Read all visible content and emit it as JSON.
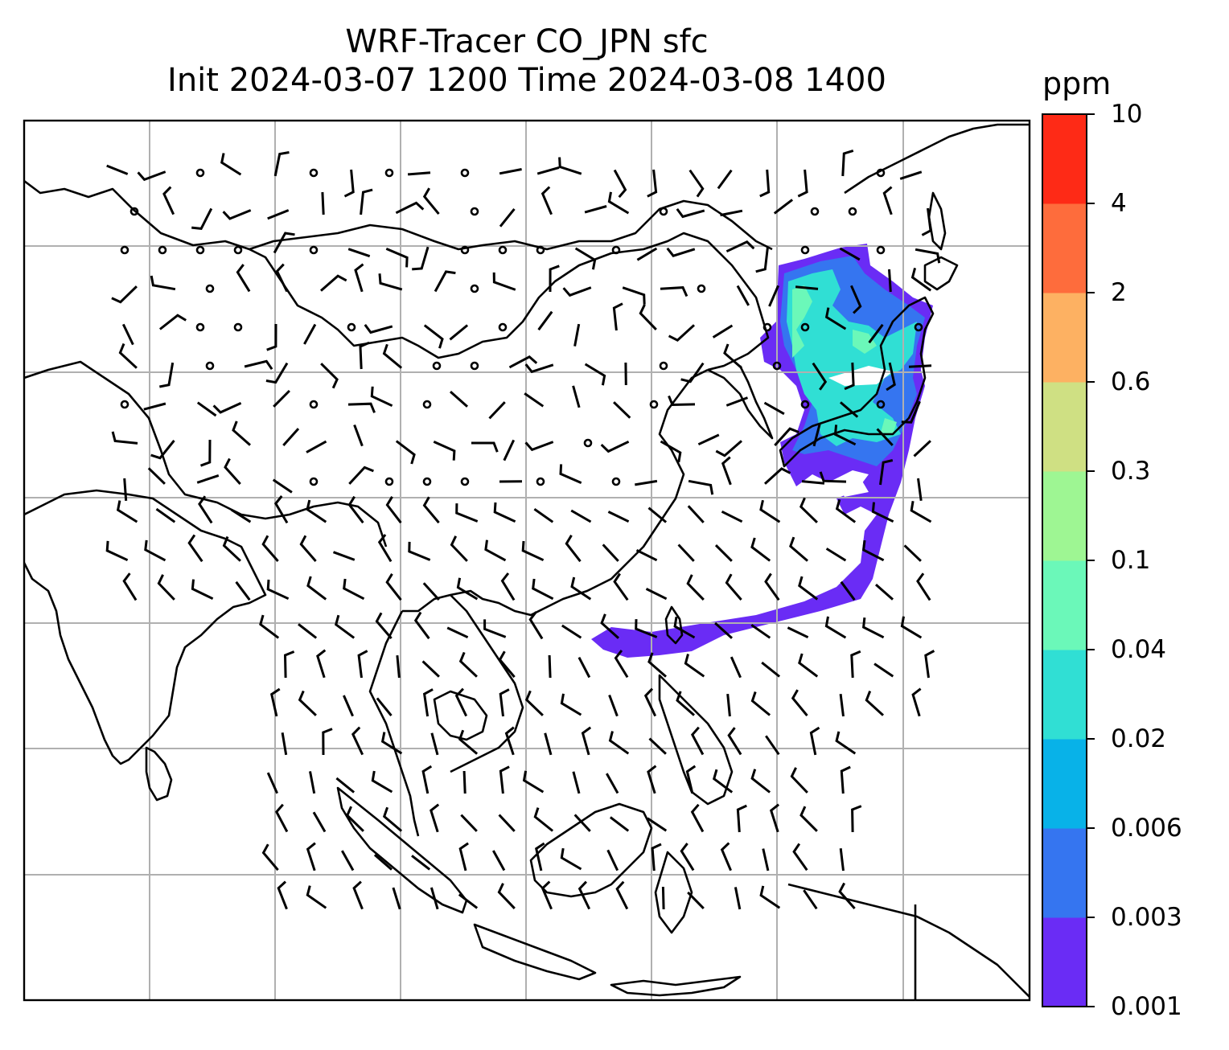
{
  "title": {
    "line1": "WRF-Tracer CO_JPN sfc",
    "line2": "Init 2024-03-07 1200 Time 2024-03-08 1400"
  },
  "colorbar": {
    "unit": "ppm",
    "levels": [
      "0.001",
      "0.003",
      "0.006",
      "0.02",
      "0.04",
      "0.1",
      "0.3",
      "0.6",
      "2",
      "4",
      "10"
    ],
    "colors": [
      "#6a2cf5",
      "#3575f0",
      "#08b2e8",
      "#30dfd4",
      "#6bf8b9",
      "#9ef693",
      "#cfe083",
      "#fdb162",
      "#fe6c3c",
      "#fe2a16"
    ]
  },
  "map": {
    "layers": [
      "coastlines",
      "gridlines",
      "wind-barbs",
      "co-tracer-concentration"
    ],
    "gridline_color": "#b0b0b0"
  }
}
